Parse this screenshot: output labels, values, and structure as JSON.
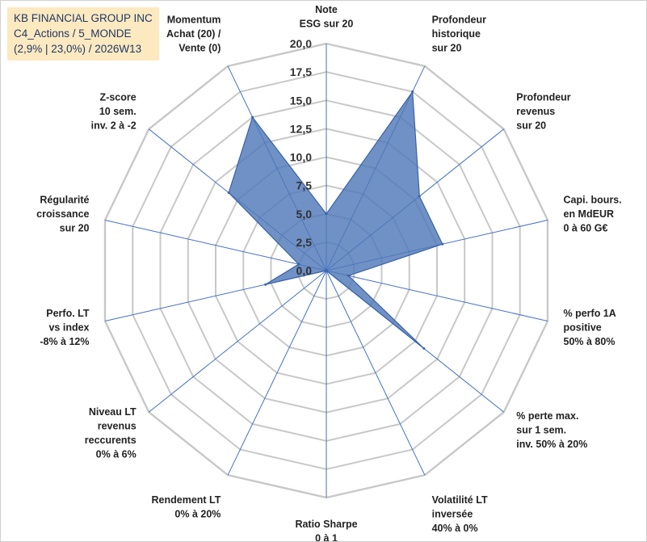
{
  "title_lines": [
    "KB FINANCIAL GROUP INC",
    "C4_Actions / 5_MONDE",
    "(2,9% | 23,0%) / 2026W13"
  ],
  "colors": {
    "title_bg": "#fde9c0",
    "title_text": "#1f3864",
    "grid": "#c8c8c8",
    "spokes": "#4472c4",
    "fill": "#4f79b8",
    "outline": "#3a62a8"
  },
  "chart_data": {
    "type": "radar",
    "series": [
      {
        "name": "KB FINANCIAL GROUP INC",
        "values": [
          5.0,
          17.5,
          10.5,
          10.5,
          2.0,
          11.0,
          0.0,
          0.0,
          0.0,
          0.0,
          5.5,
          2.5,
          11.0,
          15.0
        ]
      }
    ],
    "categories": [
      [
        "Note",
        "ESG sur 20"
      ],
      [
        "Profondeur",
        "historique",
        "sur 20"
      ],
      [
        "Profondeur",
        "revenus",
        "sur 20"
      ],
      [
        "Capi. bours.",
        "en MdEUR",
        "0 à 60 G€"
      ],
      [
        "% perfo 1A",
        "positive",
        "50% à 80%"
      ],
      [
        "% perte max.",
        "sur 1 sem.",
        "inv. 50% à 20%"
      ],
      [
        "Volatilité LT",
        "inversée",
        "40% à 0%"
      ],
      [
        "Ratio Sharpe",
        "0 à 1"
      ],
      [
        "Rendement LT",
        "0% à 20%"
      ],
      [
        "Niveau LT",
        "revenus",
        "reccurents",
        "0% à 6%"
      ],
      [
        "Perfo. LT",
        "vs index",
        "-8% à 12%"
      ],
      [
        "Régularité",
        "croissance",
        "sur 20"
      ],
      [
        "Z-score",
        "10 sem.",
        "inv. 2 à -2"
      ],
      [
        "Momentum",
        "Achat (20) /",
        "Vente (0)"
      ]
    ],
    "ticks": [
      "0,0",
      "2,5",
      "5,0",
      "7,5",
      "10,0",
      "12,5",
      "15,0",
      "17,5",
      "20,0"
    ],
    "tick_values": [
      0,
      2.5,
      5,
      7.5,
      10,
      12.5,
      15,
      17.5,
      20
    ],
    "range": [
      0,
      20
    ],
    "grid": true
  }
}
